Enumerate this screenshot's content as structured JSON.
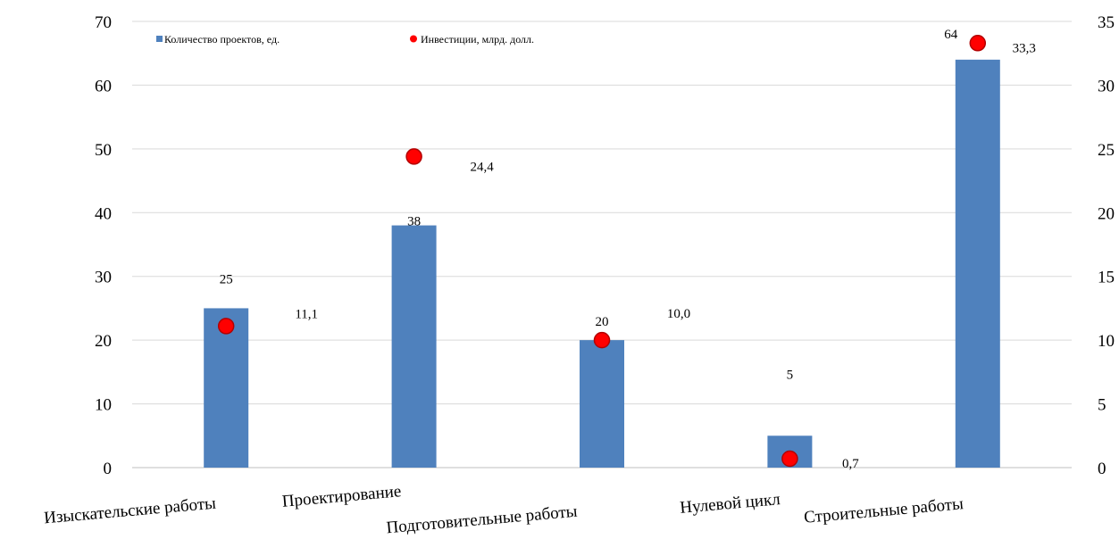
{
  "chart_data": {
    "type": "bar",
    "categories": [
      "Изыскательские работы",
      "Проектирование",
      "Подготовительные работы",
      "Нулевой  цикл",
      "Строительные работы"
    ],
    "series": [
      {
        "name": "Количество проектов, ед.",
        "type": "bar",
        "axis": "left",
        "color": "#4F81BD",
        "values": [
          25,
          38,
          20,
          5,
          64
        ],
        "labels": [
          "25",
          "38",
          "20",
          "5",
          "64"
        ]
      },
      {
        "name": "Инвестиции, млрд. долл.",
        "type": "scatter",
        "axis": "right",
        "color": "#FF0000",
        "values": [
          11.1,
          24.4,
          10.0,
          0.7,
          33.3
        ],
        "labels": [
          "11,1",
          "24,4",
          "10,0",
          "0,7",
          "33,3"
        ]
      }
    ],
    "left_axis": {
      "ylim": [
        0,
        70
      ],
      "ticks": [
        "0",
        "10",
        "20",
        "30",
        "40",
        "50",
        "60",
        "70"
      ]
    },
    "right_axis": {
      "ylim": [
        0,
        35
      ],
      "ticks": [
        "0",
        "5",
        "10",
        "15",
        "20",
        "25",
        "30",
        "35"
      ]
    },
    "grid": true,
    "legend_position": "top-left"
  }
}
